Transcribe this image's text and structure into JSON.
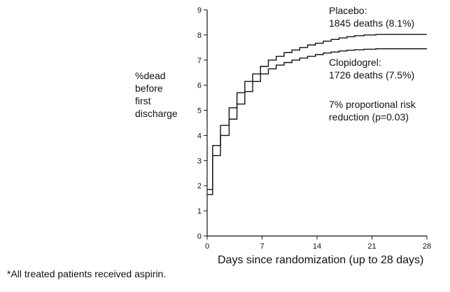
{
  "chart_data": {
    "type": "line",
    "ylabel_lines": [
      "%dead",
      "before",
      "first",
      "discharge"
    ],
    "xlabel": "Days since randomization (up to 28 days)",
    "xlim": [
      0,
      28
    ],
    "ylim": [
      0,
      9
    ],
    "xticks": [
      0,
      7,
      14,
      21,
      28
    ],
    "yticks": [
      0,
      1,
      2,
      3,
      4,
      5,
      6,
      7,
      8,
      9
    ],
    "grid": false,
    "series": [
      {
        "name": "Placebo",
        "color": "#111111",
        "steps": [
          [
            0,
            1.85
          ],
          [
            0.7,
            3.6
          ],
          [
            1.7,
            4.4
          ],
          [
            2.8,
            5.1
          ],
          [
            3.8,
            5.7
          ],
          [
            4.8,
            6.15
          ],
          [
            5.8,
            6.45
          ],
          [
            6.8,
            6.75
          ],
          [
            7.8,
            7.0
          ],
          [
            8.8,
            7.15
          ],
          [
            9.8,
            7.3
          ],
          [
            10.8,
            7.4
          ],
          [
            11.8,
            7.5
          ],
          [
            12.8,
            7.6
          ],
          [
            13.8,
            7.67
          ],
          [
            14.8,
            7.75
          ],
          [
            15.8,
            7.82
          ],
          [
            16.8,
            7.88
          ],
          [
            17.8,
            7.93
          ],
          [
            18.8,
            7.97
          ],
          [
            20,
            8.0
          ],
          [
            21.5,
            8.02
          ],
          [
            28,
            8.02
          ]
        ]
      },
      {
        "name": "Clopidogrel",
        "color": "#111111",
        "steps": [
          [
            0,
            1.65
          ],
          [
            0.7,
            3.2
          ],
          [
            1.7,
            4.0
          ],
          [
            2.8,
            4.65
          ],
          [
            3.8,
            5.25
          ],
          [
            4.8,
            5.75
          ],
          [
            5.8,
            6.15
          ],
          [
            6.8,
            6.45
          ],
          [
            7.8,
            6.65
          ],
          [
            8.8,
            6.8
          ],
          [
            9.8,
            6.9
          ],
          [
            10.8,
            7.0
          ],
          [
            11.8,
            7.08
          ],
          [
            12.8,
            7.15
          ],
          [
            13.8,
            7.22
          ],
          [
            14.8,
            7.28
          ],
          [
            15.8,
            7.32
          ],
          [
            16.8,
            7.36
          ],
          [
            17.8,
            7.39
          ],
          [
            18.8,
            7.41
          ],
          [
            20,
            7.43
          ],
          [
            21.5,
            7.45
          ],
          [
            28,
            7.45
          ]
        ]
      }
    ],
    "annotations": {
      "placebo": [
        "Placebo:",
        "1845 deaths (8.1%)"
      ],
      "clopidogrel": [
        "Clopidogrel:",
        "1726 deaths (7.5%)"
      ],
      "risk": [
        "7% proportional risk",
        "reduction (p=0.03)"
      ]
    },
    "footnote": "*All treated patients received aspirin."
  }
}
